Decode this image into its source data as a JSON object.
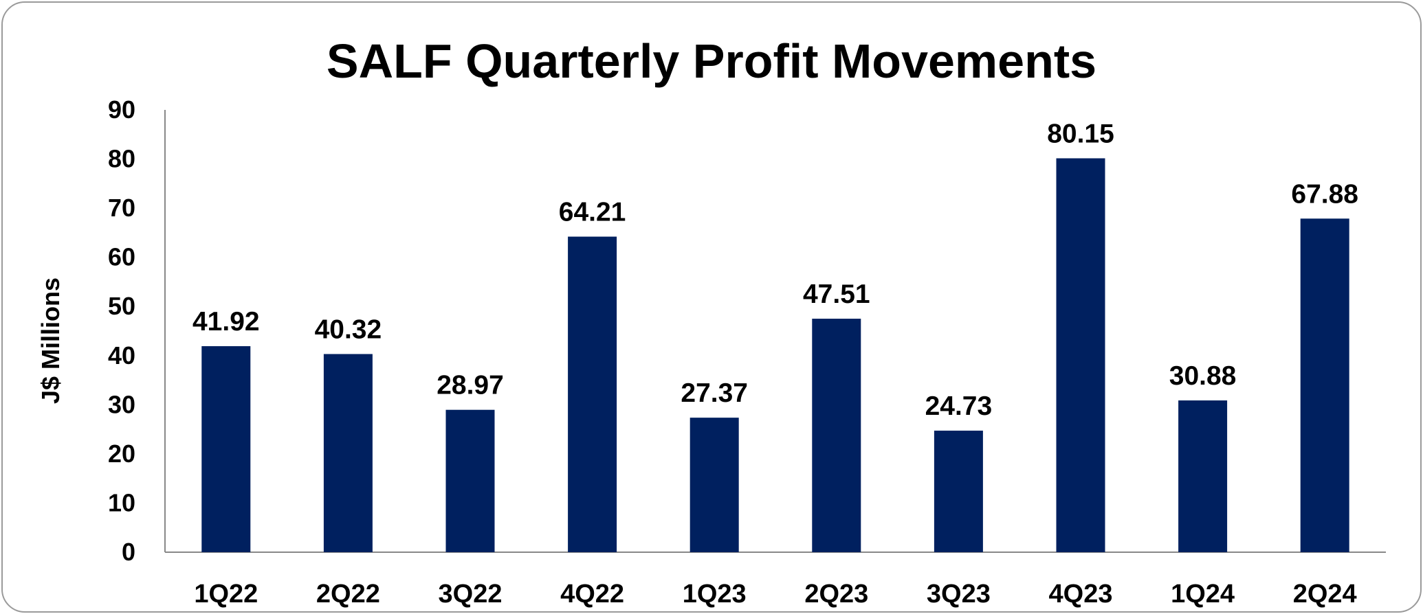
{
  "chart_data": {
    "type": "bar",
    "title": "SALF Quarterly Profit Movements",
    "xlabel": "",
    "ylabel": "J$ Millions",
    "categories": [
      "1Q22",
      "2Q22",
      "3Q22",
      "4Q22",
      "1Q23",
      "2Q23",
      "3Q23",
      "4Q23",
      "1Q24",
      "2Q24"
    ],
    "values": [
      41.92,
      40.32,
      28.97,
      64.21,
      27.37,
      47.51,
      24.73,
      80.15,
      30.88,
      67.88
    ],
    "value_labels": [
      "41.92",
      "40.32",
      "28.97",
      "64.21",
      "27.37",
      "47.51",
      "24.73",
      "80.15",
      "30.88",
      "67.88"
    ],
    "ylim": [
      0,
      90
    ],
    "yticks": [
      0,
      10,
      20,
      30,
      40,
      50,
      60,
      70,
      80,
      90
    ],
    "grid": false,
    "legend": "none",
    "bar_color": "#00205F"
  }
}
